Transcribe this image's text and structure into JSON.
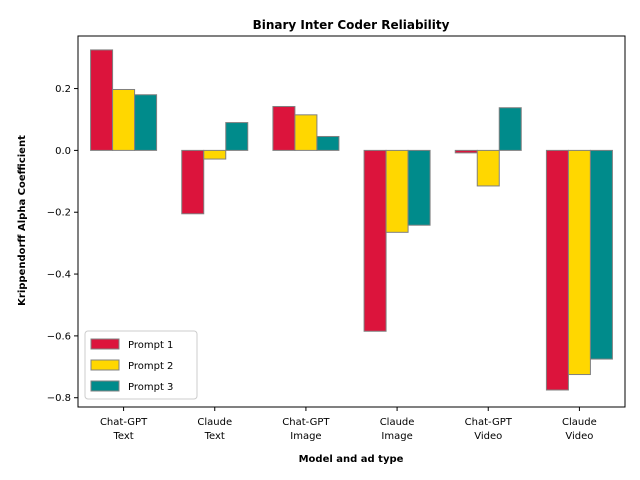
{
  "chart_data": {
    "type": "bar",
    "title": "Binary Inter Coder Reliability",
    "xlabel": "Model and ad type",
    "ylabel": "Krippendorff Alpha Coefficient",
    "categories": [
      [
        "Chat-GPT",
        "Text"
      ],
      [
        "Claude",
        "Text"
      ],
      [
        "Chat-GPT",
        "Image"
      ],
      [
        "Claude",
        "Image"
      ],
      [
        "Chat-GPT",
        "Video"
      ],
      [
        "Claude",
        "Video"
      ]
    ],
    "series": [
      {
        "name": "Prompt 1",
        "color": "#DC143C",
        "values": [
          0.325,
          -0.205,
          0.142,
          -0.585,
          -0.008,
          -0.775
        ]
      },
      {
        "name": "Prompt 2",
        "color": "#FFD700",
        "values": [
          0.197,
          -0.028,
          0.115,
          -0.265,
          -0.115,
          -0.725
        ]
      },
      {
        "name": "Prompt 3",
        "color": "#008B8B",
        "values": [
          0.18,
          0.09,
          0.045,
          -0.242,
          0.138,
          -0.675
        ]
      }
    ],
    "ylim": [
      -0.83,
      0.37
    ],
    "yticks": [
      -0.8,
      -0.6,
      -0.4,
      -0.2,
      0.0,
      0.2
    ],
    "ytick_labels": [
      "−0.8",
      "−0.6",
      "−0.4",
      "−0.2",
      "0.0",
      "0.2"
    ],
    "grid": false,
    "legend_position": "lower-left"
  }
}
